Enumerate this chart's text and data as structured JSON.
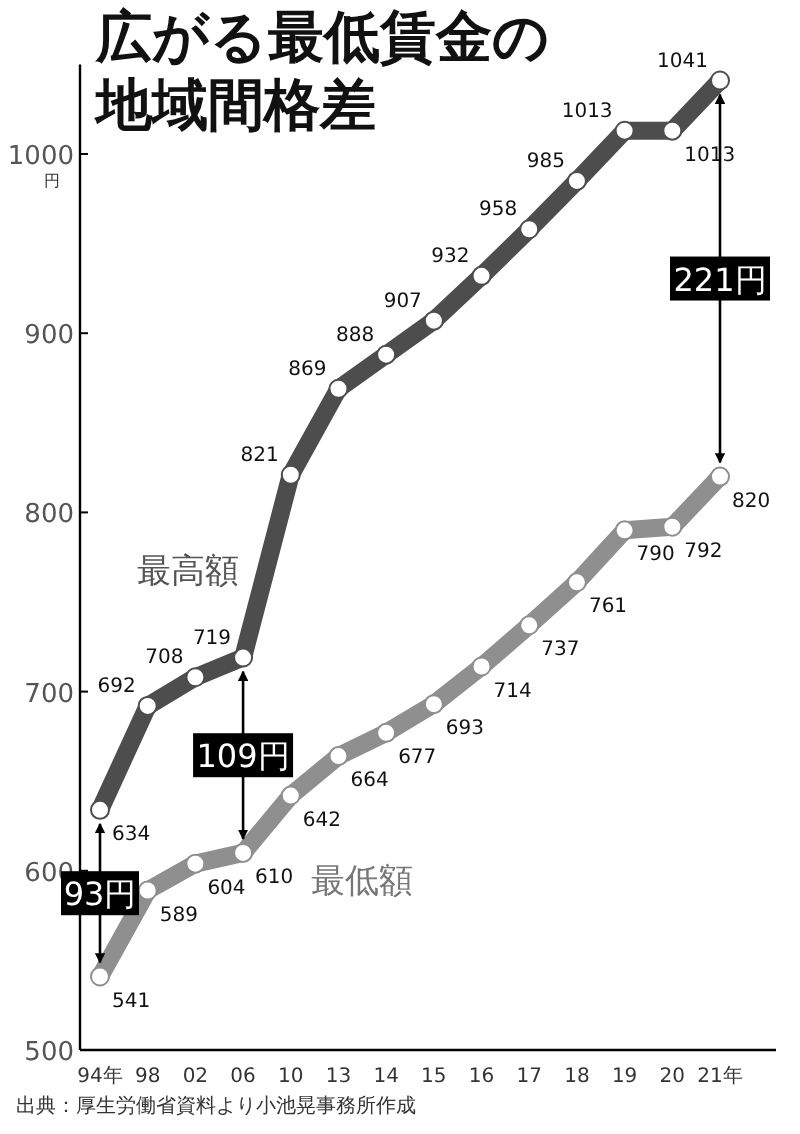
{
  "chart_data": {
    "type": "line",
    "title": "広がる最低賃金の地域間格差",
    "ylabel": "円",
    "categories": [
      "94年",
      "98",
      "02",
      "06",
      "10",
      "13",
      "14",
      "15",
      "16",
      "17",
      "18",
      "19",
      "20",
      "21年"
    ],
    "series": [
      {
        "name": "最高額",
        "color": "#4d4d4d",
        "values": [
          634,
          692,
          708,
          719,
          821,
          869,
          888,
          907,
          932,
          958,
          985,
          1013,
          1013,
          1041
        ]
      },
      {
        "name": "最低額",
        "color": "#8f8f8f",
        "values": [
          541,
          589,
          604,
          610,
          642,
          664,
          677,
          693,
          714,
          737,
          761,
          790,
          792,
          820
        ]
      }
    ],
    "ylim": [
      500,
      1050
    ],
    "yticks": [
      500,
      600,
      700,
      800,
      900,
      1000
    ],
    "grid": false,
    "legend": false,
    "marker": "circle",
    "line_style": "solid",
    "data_labels": true,
    "annotations": [
      "93円",
      "109円",
      "221円",
      "出典：厚生労働省資料より小池晃事務所作成"
    ]
  }
}
